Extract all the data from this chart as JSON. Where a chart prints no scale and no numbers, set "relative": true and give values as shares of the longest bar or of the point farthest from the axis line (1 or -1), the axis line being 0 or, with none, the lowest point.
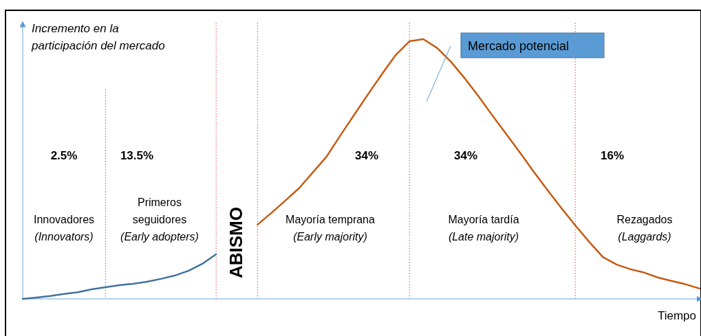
{
  "chart_data": {
    "type": "line",
    "relative": true,
    "grid": "x",
    "xlabel": "Tiempo",
    "ylabel": "Incremento en la\nparticipación del mercado",
    "categories": [
      null,
      null,
      null,
      null,
      null,
      null,
      null,
      null,
      null,
      null,
      null,
      null,
      null,
      null,
      null,
      null,
      null,
      null,
      null,
      null,
      null,
      null,
      null,
      null,
      null,
      null,
      null,
      null,
      null,
      null,
      null,
      null,
      null,
      null,
      null,
      null,
      null,
      null,
      null,
      null,
      null,
      null,
      null,
      null,
      null,
      null,
      null,
      null,
      null,
      null
    ],
    "series": [
      {
        "color": "#41719c",
        "values": [
          0,
          0.005,
          0.011,
          0.019,
          0.026,
          0.037,
          0.045,
          0.053,
          0.058,
          0.066,
          0.077,
          0.09,
          0.108,
          0.135,
          0.172,
          null,
          null,
          null,
          null,
          null,
          null,
          null,
          null,
          null,
          null,
          null,
          null,
          null,
          null,
          null,
          null,
          null,
          null,
          null,
          null,
          null,
          null,
          null,
          null,
          null,
          null,
          null,
          null,
          null,
          null,
          null,
          null,
          null,
          null,
          null
        ]
      },
      {
        "color": "#c55a11",
        "values": [
          null,
          null,
          null,
          null,
          null,
          null,
          null,
          null,
          null,
          null,
          null,
          null,
          null,
          null,
          null,
          null,
          null,
          0.286,
          0.331,
          0.378,
          0.426,
          0.487,
          0.548,
          0.63,
          0.709,
          0.788,
          0.865,
          0.939,
          0.992,
          1,
          0.966,
          0.913,
          0.849,
          0.78,
          0.706,
          0.635,
          0.563,
          0.489,
          0.418,
          0.349,
          0.283,
          0.22,
          0.161,
          0.132,
          0.114,
          0.101,
          0.082,
          0.069,
          0.056,
          0.04
        ]
      }
    ],
    "annotations": [
      "2.5%",
      "Innovadores\n(Innovators)",
      "13.5%",
      "Primeros\nseguidores\n(Early adopters)",
      "ABISMO",
      "34%",
      "Mayoría temprana\n(Early majority)",
      "34%",
      "Mayoría tardía\n(Late majority)",
      "16%",
      "Rezagados\n(Laggards)",
      "Mercado potencial"
    ]
  }
}
